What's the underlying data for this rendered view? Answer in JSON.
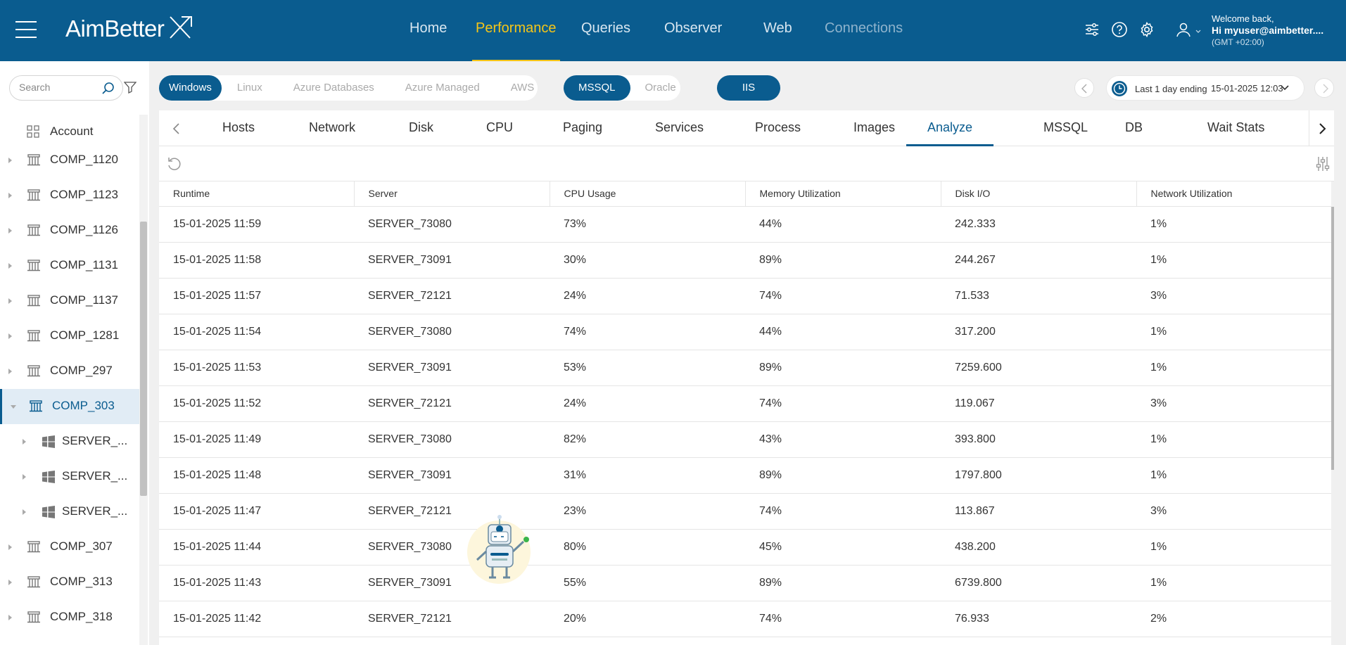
{
  "header": {
    "logo": "AimBetter",
    "nav": [
      {
        "label": "Home",
        "state": "normal"
      },
      {
        "label": "Performance",
        "state": "active"
      },
      {
        "label": "Queries",
        "state": "normal"
      },
      {
        "label": "Observer",
        "state": "normal"
      },
      {
        "label": "Web",
        "state": "normal"
      },
      {
        "label": "Connections",
        "state": "dim"
      }
    ],
    "user": {
      "welcome": "Welcome back,",
      "name": "Hi myuser@aimbetter....",
      "timezone": "(GMT +02:00)"
    }
  },
  "sidebar": {
    "search_placeholder": "Search",
    "items": [
      {
        "label": "Account",
        "type": "account"
      },
      {
        "label": "COMP_1120",
        "type": "group"
      },
      {
        "label": "COMP_1123",
        "type": "group"
      },
      {
        "label": "COMP_1126",
        "type": "group"
      },
      {
        "label": "COMP_1131",
        "type": "group"
      },
      {
        "label": "COMP_1137",
        "type": "group"
      },
      {
        "label": "COMP_1281",
        "type": "group"
      },
      {
        "label": "COMP_297",
        "type": "group"
      },
      {
        "label": "COMP_303",
        "type": "group",
        "selected": true
      },
      {
        "label": "SERVER_...",
        "type": "server"
      },
      {
        "label": "SERVER_...",
        "type": "server"
      },
      {
        "label": "SERVER_...",
        "type": "server"
      },
      {
        "label": "COMP_307",
        "type": "group"
      },
      {
        "label": "COMP_313",
        "type": "group"
      },
      {
        "label": "COMP_318",
        "type": "group"
      }
    ]
  },
  "filters": {
    "os": [
      "Windows",
      "Linux",
      "Azure Databases",
      "Azure Managed",
      "AWS"
    ],
    "os_selected": "Windows",
    "db": [
      "MSSQL",
      "Oracle"
    ],
    "db_selected": "MSSQL",
    "iis_label": "IIS",
    "date_label": "Last 1 day ending",
    "date_value": "15-01-2025 12:03"
  },
  "tabs": [
    "Hosts",
    "Network",
    "Disk",
    "CPU",
    "Paging",
    "Services",
    "Process",
    "Images",
    "Analyze",
    "MSSQL",
    "DB",
    "Wait Stats"
  ],
  "active_tab": "Analyze",
  "table": {
    "columns": [
      "Runtime",
      "Server",
      "CPU Usage",
      "Memory Utilization",
      "Disk I/O",
      "Network Utilization"
    ],
    "rows": [
      [
        "15-01-2025 11:59",
        "SERVER_73080",
        "73%",
        "44%",
        "242.333",
        "1%"
      ],
      [
        "15-01-2025 11:58",
        "SERVER_73091",
        "30%",
        "89%",
        "244.267",
        "1%"
      ],
      [
        "15-01-2025 11:57",
        "SERVER_72121",
        "24%",
        "74%",
        "71.533",
        "3%"
      ],
      [
        "15-01-2025 11:54",
        "SERVER_73080",
        "74%",
        "44%",
        "317.200",
        "1%"
      ],
      [
        "15-01-2025 11:53",
        "SERVER_73091",
        "53%",
        "89%",
        "7259.600",
        "1%"
      ],
      [
        "15-01-2025 11:52",
        "SERVER_72121",
        "24%",
        "74%",
        "119.067",
        "3%"
      ],
      [
        "15-01-2025 11:49",
        "SERVER_73080",
        "82%",
        "43%",
        "393.800",
        "1%"
      ],
      [
        "15-01-2025 11:48",
        "SERVER_73091",
        "31%",
        "89%",
        "1797.800",
        "1%"
      ],
      [
        "15-01-2025 11:47",
        "SERVER_72121",
        "23%",
        "74%",
        "113.867",
        "3%"
      ],
      [
        "15-01-2025 11:44",
        "SERVER_73080",
        "80%",
        "45%",
        "438.200",
        "1%"
      ],
      [
        "15-01-2025 11:43",
        "SERVER_73091",
        "55%",
        "89%",
        "6739.800",
        "1%"
      ],
      [
        "15-01-2025 11:42",
        "SERVER_72121",
        "20%",
        "74%",
        "76.933",
        "2%"
      ]
    ]
  },
  "colors": {
    "brand": "#0a5c8f",
    "accent": "#f5c518"
  }
}
